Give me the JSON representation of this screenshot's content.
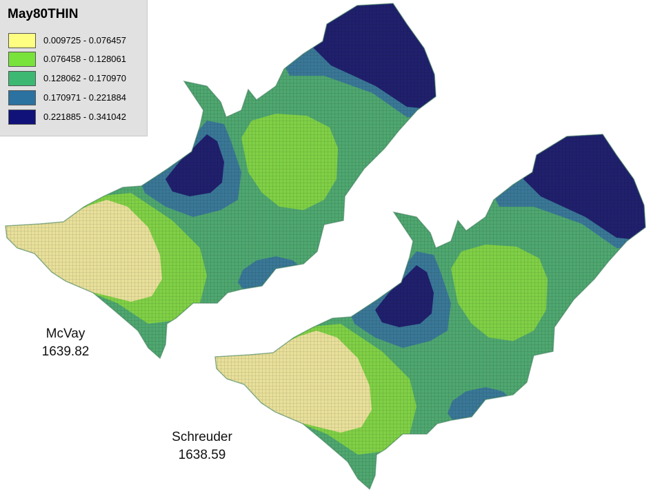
{
  "legend": {
    "title": "May80THIN",
    "classes": [
      {
        "range": "0.009725 - 0.076457",
        "color": "#feff80"
      },
      {
        "range": "0.076458 - 0.128061",
        "color": "#79e23b"
      },
      {
        "range": "0.128062 - 0.170970",
        "color": "#3cb873"
      },
      {
        "range": "0.170971 - 0.221884",
        "color": "#2b72a0"
      },
      {
        "range": "0.221885 - 0.341042",
        "color": "#10127a"
      }
    ]
  },
  "maps": [
    {
      "name": "McVay",
      "value": "1639.82"
    },
    {
      "name": "Schreuder",
      "value": "1638.59"
    }
  ],
  "map_colors": {
    "class1": "#e8e09a",
    "class2": "#80d046",
    "class3": "#4fa770",
    "class4": "#3a7897",
    "class5": "#20206e"
  }
}
